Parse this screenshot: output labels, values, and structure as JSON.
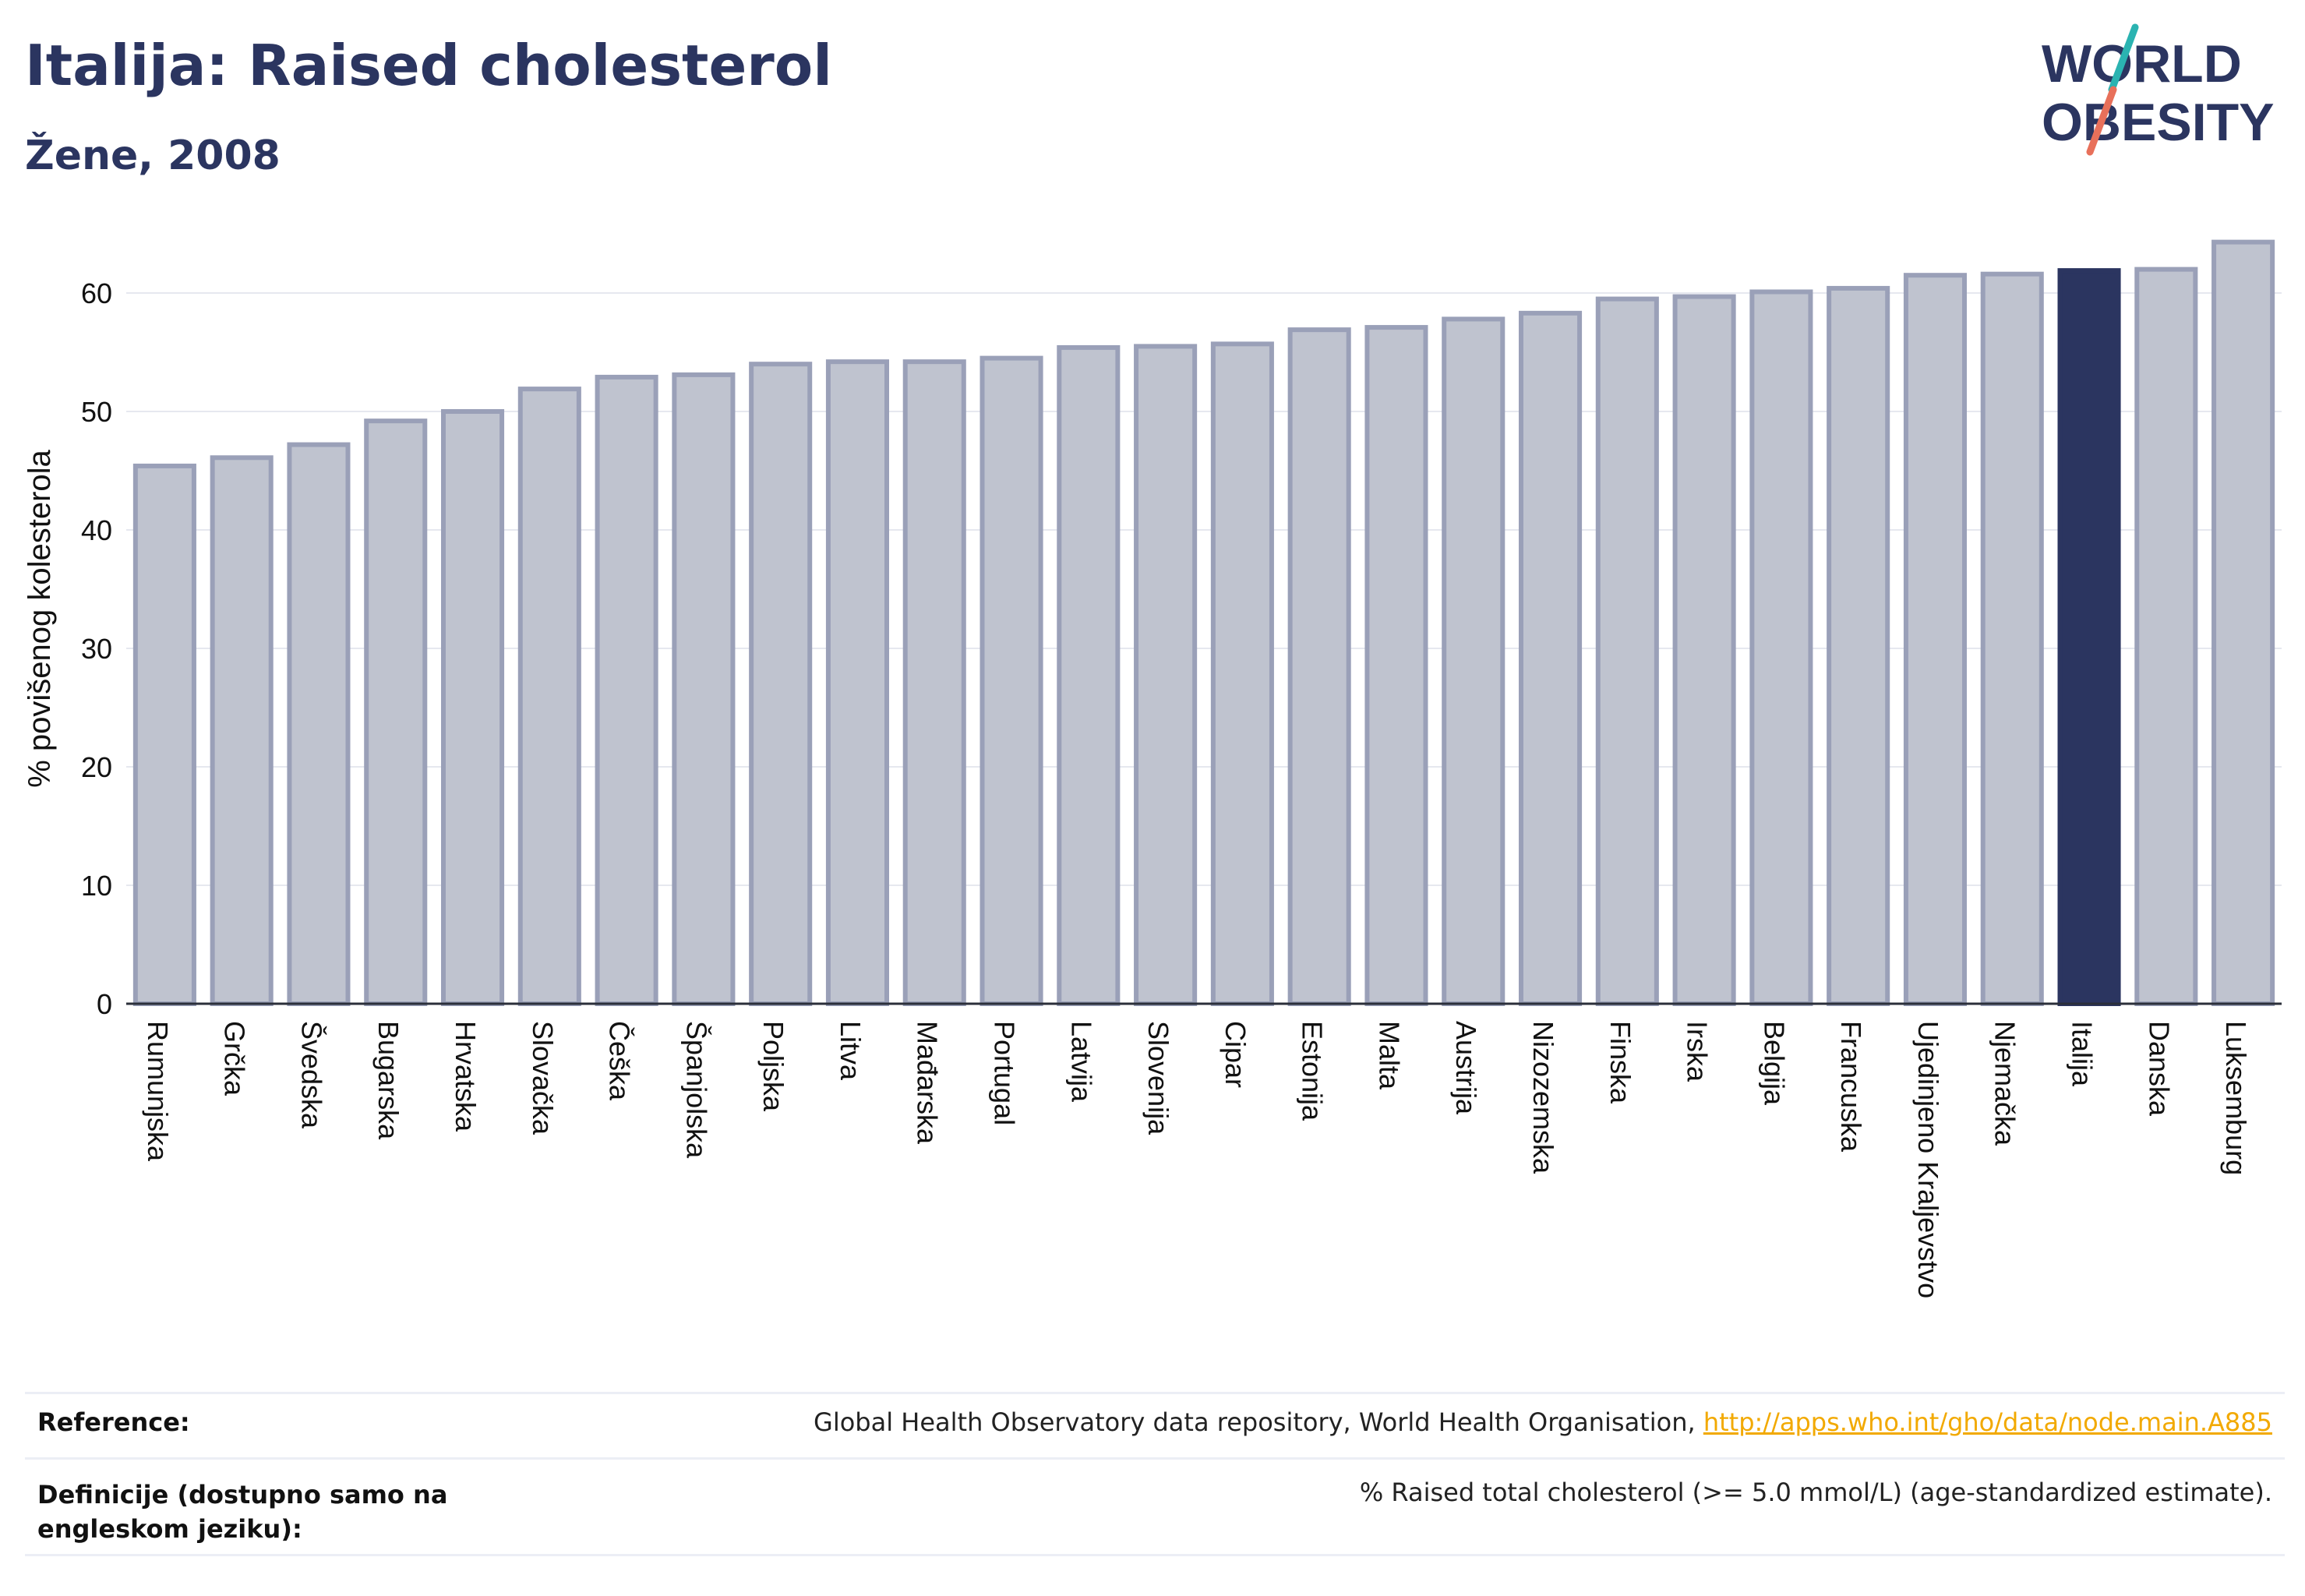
{
  "header": {
    "title": "Italija: Raised cholesterol",
    "subtitle": "Žene, 2008"
  },
  "logo": {
    "line1": "WORLD",
    "line2": "OBESITY",
    "colors": {
      "text": "#2b3560",
      "slash_teal": "#2bb3b1",
      "slash_coral": "#e8705a"
    }
  },
  "chart_data": {
    "type": "bar",
    "ylabel": "% povišenog kolesterola",
    "xlabel": "",
    "ylim": [
      0,
      65
    ],
    "yticks": [
      0,
      10,
      20,
      30,
      40,
      50,
      60
    ],
    "grid": true,
    "highlight": "Italija",
    "colors": {
      "bar": "#bfc3cf",
      "bar_edge": "#9aa0b8",
      "highlight": "#2b3560"
    },
    "categories": [
      "Rumunjska",
      "Grčka",
      "Švedska",
      "Bugarska",
      "Hrvatska",
      "Slovačka",
      "Češka",
      "Španjolska",
      "Poljska",
      "Litva",
      "Mađarska",
      "Portugal",
      "Latvija",
      "Slovenija",
      "Cipar",
      "Estonija",
      "Malta",
      "Austrija",
      "Nizozemska",
      "Finska",
      "Irska",
      "Belgija",
      "Francuska",
      "Ujedinjeno Kraljevstvo",
      "Njemačka",
      "Italija",
      "Danska",
      "Luksemburg"
    ],
    "values": [
      45.4,
      46.1,
      47.2,
      49.2,
      50.0,
      51.9,
      52.9,
      53.1,
      54.0,
      54.2,
      54.2,
      54.5,
      55.4,
      55.5,
      55.7,
      56.9,
      57.1,
      57.8,
      58.3,
      59.5,
      59.7,
      60.1,
      60.4,
      61.5,
      61.6,
      61.9,
      62.0,
      64.3
    ]
  },
  "footer": {
    "reference_label": "Reference:",
    "reference_text": "Global Health Observatory data repository, World Health Organisation, ",
    "reference_link": "http://apps.who.int/gho/data/node.main.A885",
    "definition_label": "Definicije (dostupno samo na engleskom jeziku):",
    "definition_text": "% Raised total cholesterol (>= 5.0 mmol/L) (age-standardized estimate)."
  }
}
